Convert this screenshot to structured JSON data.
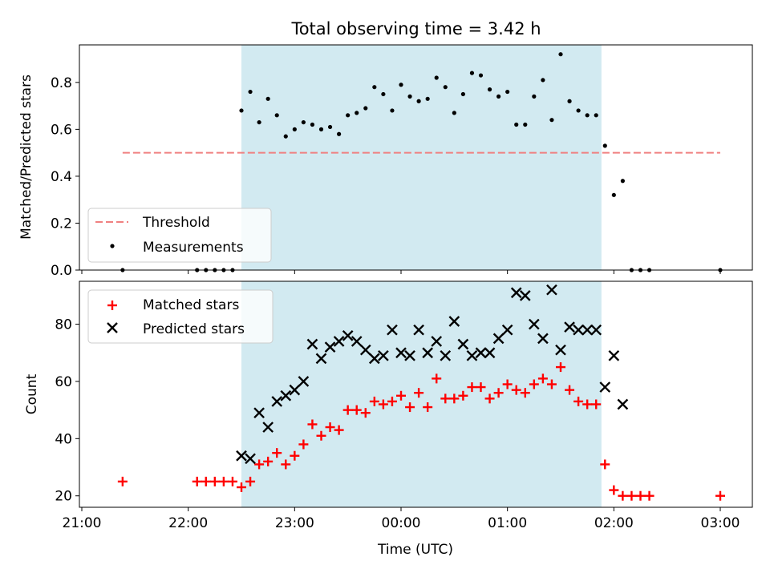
{
  "chart_data": [
    {
      "type": "scatter",
      "title": "Total observing time = 3.42 h",
      "xlabel": "",
      "ylabel": "Matched/Predicted stars",
      "xlim": [
        "21:00",
        "03:00"
      ],
      "ylim": [
        0,
        0.96
      ],
      "yticks": [
        0.0,
        0.2,
        0.4,
        0.6,
        0.8
      ],
      "ytick_labels": [
        "0.0",
        "0.2",
        "0.4",
        "0.6",
        "0.8"
      ],
      "shaded_interval": {
        "start": "22:30",
        "end": "01:53",
        "color": "#add8e6"
      },
      "legend_position": "lower-left",
      "threshold": {
        "name": "Threshold",
        "value": 0.5,
        "x_start": "21:23",
        "x_end": "03:00",
        "color": "#f08080",
        "style": "dashed"
      },
      "series": [
        {
          "name": "Measurements",
          "color": "#000000",
          "marker": "dot",
          "x": [
            "21:23",
            "22:05",
            "22:10",
            "22:15",
            "22:20",
            "22:25",
            "22:30",
            "22:35",
            "22:40",
            "22:45",
            "22:50",
            "22:55",
            "23:00",
            "23:05",
            "23:10",
            "23:15",
            "23:20",
            "23:25",
            "23:30",
            "23:35",
            "23:40",
            "23:45",
            "23:50",
            "23:55",
            "00:00",
            "00:05",
            "00:10",
            "00:15",
            "00:20",
            "00:25",
            "00:30",
            "00:35",
            "00:40",
            "00:45",
            "00:50",
            "00:55",
            "01:00",
            "01:05",
            "01:10",
            "01:15",
            "01:20",
            "01:25",
            "01:30",
            "01:35",
            "01:40",
            "01:45",
            "01:50",
            "01:55",
            "02:00",
            "02:05",
            "02:10",
            "02:15",
            "02:20",
            "03:00"
          ],
          "y": [
            0.0,
            0.0,
            0.0,
            0.0,
            0.0,
            0.0,
            0.68,
            0.76,
            0.63,
            0.73,
            0.66,
            0.57,
            0.6,
            0.63,
            0.62,
            0.6,
            0.61,
            0.58,
            0.66,
            0.67,
            0.69,
            0.78,
            0.75,
            0.68,
            0.79,
            0.74,
            0.72,
            0.73,
            0.82,
            0.78,
            0.67,
            0.75,
            0.84,
            0.83,
            0.77,
            0.74,
            0.76,
            0.62,
            0.62,
            0.74,
            0.81,
            0.64,
            0.92,
            0.72,
            0.68,
            0.66,
            0.66,
            0.53,
            0.32,
            0.38,
            0.0,
            0.0,
            0.0,
            0.0
          ]
        }
      ]
    },
    {
      "type": "scatter",
      "title": "",
      "xlabel": "Time (UTC)",
      "ylabel": "Count",
      "xlim": [
        "21:00",
        "03:00"
      ],
      "ylim": [
        16,
        95
      ],
      "yticks": [
        20,
        40,
        60,
        80
      ],
      "ytick_labels": [
        "20",
        "40",
        "60",
        "80"
      ],
      "xticks": [
        "21:00",
        "22:00",
        "23:00",
        "00:00",
        "01:00",
        "02:00",
        "03:00"
      ],
      "xtick_labels": [
        "21:00",
        "22:00",
        "23:00",
        "00:00",
        "01:00",
        "02:00",
        "03:00"
      ],
      "shaded_interval": {
        "start": "22:30",
        "end": "01:53",
        "color": "#add8e6"
      },
      "legend_position": "upper-left",
      "series": [
        {
          "name": "Matched stars",
          "color": "#ff0000",
          "marker": "plus",
          "x": [
            "21:23",
            "22:05",
            "22:10",
            "22:15",
            "22:20",
            "22:25",
            "22:30",
            "22:35",
            "22:40",
            "22:45",
            "22:50",
            "22:55",
            "23:00",
            "23:05",
            "23:10",
            "23:15",
            "23:20",
            "23:25",
            "23:30",
            "23:35",
            "23:40",
            "23:45",
            "23:50",
            "23:55",
            "00:00",
            "00:05",
            "00:10",
            "00:15",
            "00:20",
            "00:25",
            "00:30",
            "00:35",
            "00:40",
            "00:45",
            "00:50",
            "00:55",
            "01:00",
            "01:05",
            "01:10",
            "01:15",
            "01:20",
            "01:25",
            "01:30",
            "01:35",
            "01:40",
            "01:45",
            "01:50",
            "01:55",
            "02:00",
            "02:05",
            "02:10",
            "02:15",
            "02:20",
            "03:00"
          ],
          "y": [
            25,
            25,
            25,
            25,
            25,
            25,
            23,
            25,
            31,
            32,
            35,
            31,
            34,
            38,
            45,
            41,
            44,
            43,
            50,
            50,
            49,
            53,
            52,
            53,
            55,
            51,
            56,
            51,
            61,
            54,
            54,
            55,
            58,
            58,
            54,
            56,
            59,
            57,
            56,
            59,
            61,
            59,
            65,
            57,
            53,
            52,
            52,
            31,
            22,
            20,
            20,
            20,
            20,
            20
          ]
        },
        {
          "name": "Predicted stars",
          "color": "#000000",
          "marker": "x",
          "x": [
            "22:30",
            "22:35",
            "22:40",
            "22:45",
            "22:50",
            "22:55",
            "23:00",
            "23:05",
            "23:10",
            "23:15",
            "23:20",
            "23:25",
            "23:30",
            "23:35",
            "23:40",
            "23:45",
            "23:50",
            "23:55",
            "00:00",
            "00:05",
            "00:10",
            "00:15",
            "00:20",
            "00:25",
            "00:30",
            "00:35",
            "00:40",
            "00:45",
            "00:50",
            "00:55",
            "01:00",
            "01:05",
            "01:10",
            "01:15",
            "01:20",
            "01:25",
            "01:30",
            "01:35",
            "01:40",
            "01:45",
            "01:50",
            "01:55",
            "02:00",
            "02:05"
          ],
          "y": [
            34,
            33,
            49,
            44,
            53,
            55,
            57,
            60,
            73,
            68,
            72,
            74,
            76,
            74,
            71,
            68,
            69,
            78,
            70,
            69,
            78,
            70,
            74,
            69,
            81,
            73,
            69,
            70,
            70,
            75,
            78,
            91,
            90,
            80,
            75,
            92,
            71,
            79,
            78,
            78,
            78,
            58,
            69,
            52
          ]
        }
      ]
    }
  ]
}
